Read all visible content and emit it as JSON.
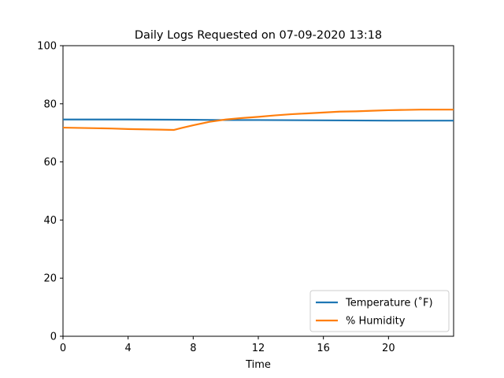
{
  "chart_data": {
    "type": "line",
    "title": "Daily Logs Requested on 07-09-2020 13:18",
    "xlabel": "Time",
    "ylabel": "",
    "xlim": [
      0,
      24
    ],
    "ylim": [
      0,
      100
    ],
    "xticks": [
      0,
      4,
      8,
      12,
      16,
      20
    ],
    "yticks": [
      0,
      20,
      40,
      60,
      80,
      100
    ],
    "grid": false,
    "legend_position": "lower-right",
    "series": [
      {
        "name": "Temperature (˚F)",
        "color": "#1f77b4",
        "points": [
          [
            0,
            74.6
          ],
          [
            4,
            74.6
          ],
          [
            8,
            74.5
          ],
          [
            10,
            74.4
          ],
          [
            12,
            74.4
          ],
          [
            16,
            74.3
          ],
          [
            20,
            74.2
          ],
          [
            24,
            74.2
          ]
        ]
      },
      {
        "name": "% Humidity",
        "color": "#ff7f0e",
        "points": [
          [
            0,
            71.8
          ],
          [
            1,
            71.7
          ],
          [
            2,
            71.6
          ],
          [
            3,
            71.5
          ],
          [
            4,
            71.3
          ],
          [
            5,
            71.2
          ],
          [
            6,
            71.1
          ],
          [
            6.8,
            71.0
          ],
          [
            7.3,
            71.7
          ],
          [
            8,
            72.6
          ],
          [
            9,
            73.8
          ],
          [
            10,
            74.6
          ],
          [
            11,
            75.1
          ],
          [
            12,
            75.5
          ],
          [
            13,
            76.0
          ],
          [
            14,
            76.4
          ],
          [
            15,
            76.7
          ],
          [
            16,
            77.0
          ],
          [
            17,
            77.3
          ],
          [
            18,
            77.4
          ],
          [
            19,
            77.6
          ],
          [
            20,
            77.8
          ],
          [
            21,
            77.9
          ],
          [
            22,
            78.0
          ],
          [
            23,
            78.0
          ],
          [
            24,
            78.0
          ]
        ]
      }
    ]
  }
}
